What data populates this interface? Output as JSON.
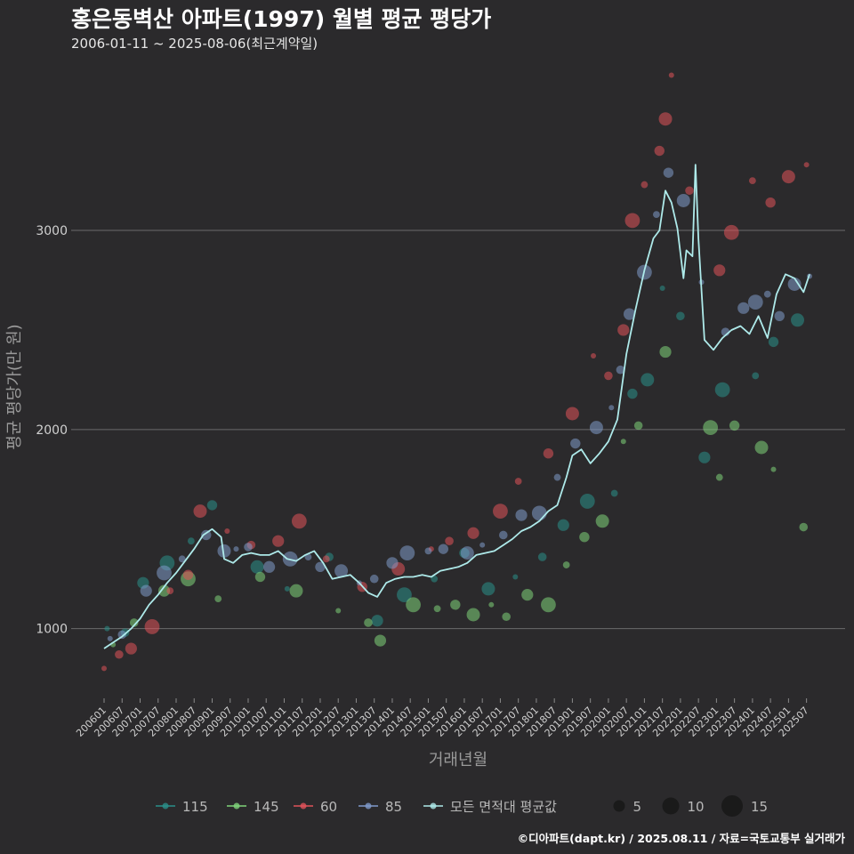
{
  "chart_data": {
    "type": "scatter",
    "title": "홍은동벽산 아파트(1997) 월별 평균 평당가",
    "subtitle": "2006-01-11 ~ 2025-08-06(최근계약일)",
    "xlabel": "거래년월",
    "ylabel": "평균 평당가(만 원)",
    "ylim": [
      650,
      3800
    ],
    "yticks": [
      1000,
      2000,
      3000
    ],
    "grid": true,
    "legend_position": "bottom",
    "x_ticks": [
      "200601",
      "200607",
      "200701",
      "200707",
      "200801",
      "200807",
      "200901",
      "200907",
      "201001",
      "201007",
      "201101",
      "201107",
      "201201",
      "201207",
      "201301",
      "201307",
      "201401",
      "201407",
      "201501",
      "201507",
      "201601",
      "201607",
      "201701",
      "201707",
      "201801",
      "201807",
      "201901",
      "201907",
      "202001",
      "202007",
      "202101",
      "202107",
      "202201",
      "202207",
      "202301",
      "202307",
      "202401",
      "202407",
      "202501",
      "202507"
    ],
    "colors": {
      "115": "#2a8f8a",
      "145": "#7fd37a",
      "60": "#e0525a",
      "85": "#7f9acb",
      "avg": "#aeeaea"
    },
    "size_legend": {
      "values": [
        5,
        10,
        15
      ],
      "labels": [
        "5",
        "10",
        "15"
      ]
    },
    "series": [
      {
        "name": "115",
        "points": [
          [
            "2006-02",
            1000
          ],
          [
            "2006-08",
            980
          ],
          [
            "2007-02",
            1230
          ],
          [
            "2007-10",
            1330
          ],
          [
            "2008-06",
            1440
          ],
          [
            "2009-01",
            1620
          ],
          [
            "2010-04",
            1310
          ],
          [
            "2011-02",
            1200
          ],
          [
            "2012-04",
            1360
          ],
          [
            "2013-08",
            1040
          ],
          [
            "2014-05",
            1170
          ],
          [
            "2015-03",
            1250
          ],
          [
            "2016-01",
            1380
          ],
          [
            "2016-09",
            1200
          ],
          [
            "2017-06",
            1260
          ],
          [
            "2018-03",
            1360
          ],
          [
            "2018-10",
            1520
          ],
          [
            "2019-06",
            1640
          ],
          [
            "2020-03",
            1680
          ],
          [
            "2020-09",
            2180
          ],
          [
            "2021-02",
            2250
          ],
          [
            "2021-07",
            2710
          ],
          [
            "2022-01",
            2570
          ],
          [
            "2022-09",
            1860
          ],
          [
            "2023-03",
            2200
          ],
          [
            "2024-02",
            2270
          ],
          [
            "2024-08",
            2440
          ],
          [
            "2025-04",
            2550
          ]
        ]
      },
      {
        "name": "145",
        "points": [
          [
            "2006-04",
            920
          ],
          [
            "2006-11",
            1030
          ],
          [
            "2007-09",
            1190
          ],
          [
            "2008-05",
            1250
          ],
          [
            "2009-03",
            1150
          ],
          [
            "2010-05",
            1260
          ],
          [
            "2011-05",
            1190
          ],
          [
            "2012-07",
            1090
          ],
          [
            "2013-05",
            1030
          ],
          [
            "2013-09",
            940
          ],
          [
            "2014-08",
            1120
          ],
          [
            "2015-04",
            1100
          ],
          [
            "2015-10",
            1120
          ],
          [
            "2016-04",
            1070
          ],
          [
            "2016-10",
            1120
          ],
          [
            "2017-03",
            1060
          ],
          [
            "2017-10",
            1170
          ],
          [
            "2018-05",
            1120
          ],
          [
            "2018-11",
            1320
          ],
          [
            "2019-05",
            1460
          ],
          [
            "2019-11",
            1540
          ],
          [
            "2020-06",
            1940
          ],
          [
            "2020-11",
            2020
          ],
          [
            "2021-08",
            2390
          ],
          [
            "2022-11",
            2010
          ],
          [
            "2023-02",
            1760
          ],
          [
            "2023-07",
            2020
          ],
          [
            "2024-04",
            1910
          ],
          [
            "2024-08",
            1800
          ],
          [
            "2025-06",
            1510
          ]
        ]
      },
      {
        "name": "60",
        "points": [
          [
            "2006-01",
            800
          ],
          [
            "2006-06",
            870
          ],
          [
            "2006-10",
            900
          ],
          [
            "2007-05",
            1010
          ],
          [
            "2007-11",
            1190
          ],
          [
            "2008-05",
            1270
          ],
          [
            "2008-09",
            1590
          ],
          [
            "2009-06",
            1490
          ],
          [
            "2010-02",
            1420
          ],
          [
            "2010-11",
            1440
          ],
          [
            "2011-06",
            1540
          ],
          [
            "2012-03",
            1350
          ],
          [
            "2013-03",
            1210
          ],
          [
            "2014-03",
            1300
          ],
          [
            "2015-02",
            1400
          ],
          [
            "2015-08",
            1440
          ],
          [
            "2016-04",
            1480
          ],
          [
            "2017-01",
            1590
          ],
          [
            "2017-07",
            1740
          ],
          [
            "2018-05",
            1880
          ],
          [
            "2019-01",
            2080
          ],
          [
            "2019-08",
            2370
          ],
          [
            "2020-01",
            2270
          ],
          [
            "2020-06",
            2500
          ],
          [
            "2020-09",
            3050
          ],
          [
            "2021-01",
            3230
          ],
          [
            "2021-06",
            3400
          ],
          [
            "2021-08",
            3560
          ],
          [
            "2021-10",
            3780
          ],
          [
            "2022-04",
            3200
          ],
          [
            "2023-02",
            2800
          ],
          [
            "2023-06",
            2990
          ],
          [
            "2024-01",
            3250
          ],
          [
            "2024-07",
            3140
          ],
          [
            "2025-01",
            3270
          ],
          [
            "2025-07",
            3330
          ]
        ]
      },
      {
        "name": "85",
        "points": [
          [
            "2006-03",
            950
          ],
          [
            "2006-07",
            970
          ],
          [
            "2007-03",
            1190
          ],
          [
            "2007-09",
            1280
          ],
          [
            "2008-03",
            1350
          ],
          [
            "2008-11",
            1470
          ],
          [
            "2009-05",
            1390
          ],
          [
            "2009-09",
            1400
          ],
          [
            "2010-01",
            1410
          ],
          [
            "2010-08",
            1310
          ],
          [
            "2011-03",
            1350
          ],
          [
            "2011-09",
            1360
          ],
          [
            "2012-01",
            1310
          ],
          [
            "2012-08",
            1290
          ],
          [
            "2013-02",
            1230
          ],
          [
            "2013-07",
            1250
          ],
          [
            "2014-01",
            1330
          ],
          [
            "2014-06",
            1380
          ],
          [
            "2015-01",
            1390
          ],
          [
            "2015-06",
            1400
          ],
          [
            "2016-02",
            1380
          ],
          [
            "2016-07",
            1420
          ],
          [
            "2017-02",
            1470
          ],
          [
            "2017-08",
            1570
          ],
          [
            "2018-02",
            1580
          ],
          [
            "2018-08",
            1760
          ],
          [
            "2019-02",
            1930
          ],
          [
            "2019-09",
            2010
          ],
          [
            "2020-02",
            2110
          ],
          [
            "2020-05",
            2300
          ],
          [
            "2020-08",
            2580
          ],
          [
            "2021-01",
            2790
          ],
          [
            "2021-05",
            3080
          ],
          [
            "2021-09",
            3290
          ],
          [
            "2022-02",
            3150
          ],
          [
            "2022-08",
            2740
          ],
          [
            "2023-04",
            2490
          ],
          [
            "2023-10",
            2610
          ],
          [
            "2024-02",
            2640
          ],
          [
            "2024-06",
            2680
          ],
          [
            "2024-10",
            2570
          ],
          [
            "2025-03",
            2730
          ],
          [
            "2025-08",
            2770
          ]
        ]
      }
    ],
    "average": {
      "name": "모든 면적대 평균값",
      "points": [
        [
          "2006-01",
          900
        ],
        [
          "2006-04",
          930
        ],
        [
          "2006-07",
          960
        ],
        [
          "2006-10",
          1000
        ],
        [
          "2007-01",
          1050
        ],
        [
          "2007-04",
          1120
        ],
        [
          "2007-07",
          1170
        ],
        [
          "2007-10",
          1230
        ],
        [
          "2008-01",
          1280
        ],
        [
          "2008-04",
          1340
        ],
        [
          "2008-07",
          1400
        ],
        [
          "2008-10",
          1470
        ],
        [
          "2009-01",
          1500
        ],
        [
          "2009-04",
          1460
        ],
        [
          "2009-05",
          1350
        ],
        [
          "2009-08",
          1330
        ],
        [
          "2009-11",
          1370
        ],
        [
          "2010-02",
          1380
        ],
        [
          "2010-05",
          1370
        ],
        [
          "2010-08",
          1370
        ],
        [
          "2010-11",
          1390
        ],
        [
          "2011-02",
          1350
        ],
        [
          "2011-05",
          1340
        ],
        [
          "2011-08",
          1370
        ],
        [
          "2011-11",
          1390
        ],
        [
          "2012-02",
          1330
        ],
        [
          "2012-05",
          1250
        ],
        [
          "2012-08",
          1260
        ],
        [
          "2012-11",
          1270
        ],
        [
          "2013-02",
          1230
        ],
        [
          "2013-05",
          1180
        ],
        [
          "2013-08",
          1160
        ],
        [
          "2013-11",
          1230
        ],
        [
          "2014-02",
          1250
        ],
        [
          "2014-05",
          1260
        ],
        [
          "2014-08",
          1260
        ],
        [
          "2014-11",
          1270
        ],
        [
          "2015-02",
          1260
        ],
        [
          "2015-05",
          1290
        ],
        [
          "2015-08",
          1300
        ],
        [
          "2015-11",
          1310
        ],
        [
          "2016-02",
          1330
        ],
        [
          "2016-05",
          1370
        ],
        [
          "2016-08",
          1380
        ],
        [
          "2016-11",
          1390
        ],
        [
          "2017-02",
          1420
        ],
        [
          "2017-05",
          1450
        ],
        [
          "2017-08",
          1490
        ],
        [
          "2017-11",
          1510
        ],
        [
          "2018-02",
          1540
        ],
        [
          "2018-05",
          1590
        ],
        [
          "2018-08",
          1620
        ],
        [
          "2018-11",
          1760
        ],
        [
          "2019-01",
          1870
        ],
        [
          "2019-04",
          1900
        ],
        [
          "2019-07",
          1830
        ],
        [
          "2019-10",
          1880
        ],
        [
          "2020-01",
          1940
        ],
        [
          "2020-04",
          2050
        ],
        [
          "2020-07",
          2380
        ],
        [
          "2020-10",
          2600
        ],
        [
          "2021-01",
          2800
        ],
        [
          "2021-04",
          2960
        ],
        [
          "2021-06",
          3000
        ],
        [
          "2021-08",
          3200
        ],
        [
          "2021-10",
          3140
        ],
        [
          "2021-12",
          3010
        ],
        [
          "2022-02",
          2760
        ],
        [
          "2022-03",
          2900
        ],
        [
          "2022-05",
          2870
        ],
        [
          "2022-06",
          3330
        ],
        [
          "2022-07",
          2960
        ],
        [
          "2022-09",
          2450
        ],
        [
          "2022-12",
          2400
        ],
        [
          "2023-03",
          2460
        ],
        [
          "2023-06",
          2500
        ],
        [
          "2023-09",
          2520
        ],
        [
          "2023-12",
          2480
        ],
        [
          "2024-03",
          2570
        ],
        [
          "2024-06",
          2460
        ],
        [
          "2024-09",
          2680
        ],
        [
          "2024-12",
          2780
        ],
        [
          "2025-03",
          2760
        ],
        [
          "2025-06",
          2690
        ],
        [
          "2025-08",
          2780
        ]
      ]
    }
  },
  "caption": "©디아파트(dapt.kr) / 2025.08.11 / 자료=국토교통부 실거래가"
}
